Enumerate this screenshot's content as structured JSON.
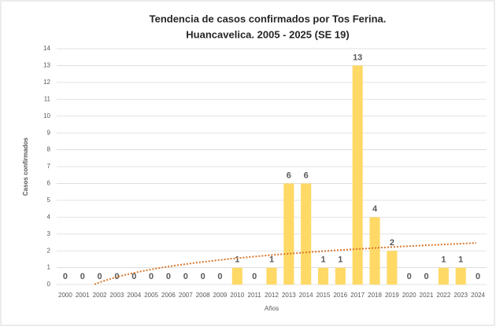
{
  "chart_data": {
    "type": "bar",
    "title": [
      "Tendencia de casos confirmados por Tos Ferina.",
      "Huancavelica. 2005 - 2025 (SE 19)"
    ],
    "x_label": "Años",
    "y_label": "Casos confirmados",
    "categories": [
      "2000",
      "2001",
      "2002",
      "2003",
      "2004",
      "2005",
      "2006",
      "2007",
      "2008",
      "2009",
      "2010",
      "2011",
      "2012",
      "2013",
      "2014",
      "2015",
      "2016",
      "2017",
      "2018",
      "2019",
      "2020",
      "2021",
      "2022",
      "2023",
      "2024"
    ],
    "values": [
      0,
      0,
      0,
      0,
      0,
      0,
      0,
      0,
      0,
      0,
      1,
      0,
      1,
      6,
      6,
      1,
      1,
      13,
      4,
      2,
      0,
      0,
      1,
      1,
      0
    ],
    "color": "#ffd966",
    "ylim": [
      0,
      14
    ],
    "yticks": [
      0,
      1,
      2,
      3,
      4,
      5,
      6,
      7,
      8,
      9,
      10,
      11,
      12,
      13,
      14
    ],
    "grid": true,
    "trendline": "logarithmic",
    "trendline_color": "#d9772b"
  }
}
